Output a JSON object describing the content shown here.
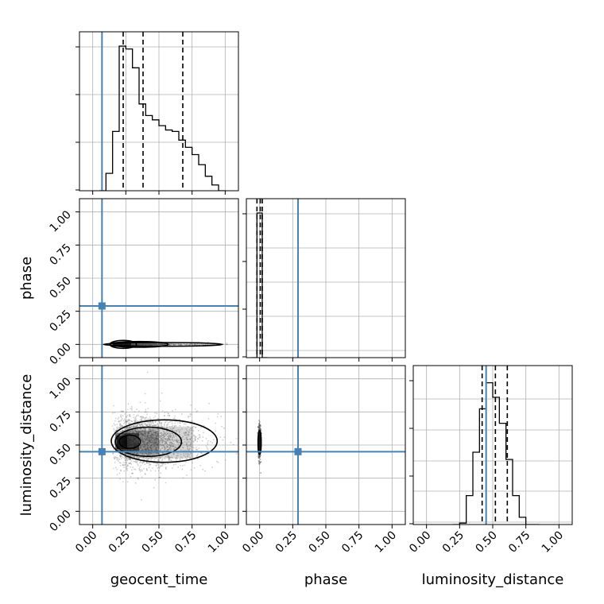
{
  "chart_data": {
    "type": "corner",
    "parameters": [
      "geocent_time",
      "phase",
      "luminosity_distance"
    ],
    "axis_labels": {
      "x": [
        "geocent_time",
        "phase",
        "luminosity_distance"
      ],
      "y": [
        "phase",
        "luminosity_distance"
      ]
    },
    "ticks": [
      0.0,
      0.25,
      0.5,
      0.75,
      1.0
    ],
    "tick_labels": [
      "0.00",
      "0.25",
      "0.50",
      "0.75",
      "1.00"
    ],
    "axis_range": [
      -0.1,
      1.1
    ],
    "grid": true,
    "colors": {
      "truth": "#4682b4",
      "hist": "#000000",
      "quantile": "#000000",
      "grid": "#b0b0b0"
    },
    "truths": {
      "geocent_time": 0.07,
      "phase": 0.29,
      "luminosity_distance": 0.45
    },
    "quantiles": {
      "geocent_time": [
        0.23,
        0.38,
        0.68
      ],
      "phase": [
        -0.02,
        0.005,
        0.02
      ],
      "luminosity_distance": [
        0.42,
        0.52,
        0.61
      ]
    },
    "histograms": {
      "geocent_time": {
        "bin_edges": [
          0.05,
          0.1,
          0.15,
          0.2,
          0.25,
          0.3,
          0.35,
          0.4,
          0.45,
          0.5,
          0.55,
          0.6,
          0.65,
          0.7,
          0.75,
          0.8,
          0.85,
          0.9,
          0.95,
          1.0
        ],
        "heights": [
          0.0,
          0.12,
          0.41,
          1.0,
          0.98,
          0.85,
          0.6,
          0.52,
          0.49,
          0.45,
          0.42,
          0.41,
          0.35,
          0.3,
          0.25,
          0.18,
          0.1,
          0.04,
          0.0
        ]
      },
      "phase": {
        "bin_edges": [
          -0.06,
          -0.02,
          0.02,
          0.06
        ],
        "heights": [
          0.0,
          1.0,
          0.0
        ]
      },
      "luminosity_distance": {
        "bin_edges": [
          0.2,
          0.25,
          0.3,
          0.35,
          0.4,
          0.45,
          0.5,
          0.55,
          0.6,
          0.65,
          0.7,
          0.75,
          0.8,
          0.85
        ],
        "heights": [
          0.0,
          0.01,
          0.2,
          0.5,
          0.8,
          0.98,
          0.88,
          0.7,
          0.45,
          0.2,
          0.05,
          0.0,
          0.0
        ]
      }
    },
    "contours": {
      "geocent_time|phase": [
        {
          "level": "outer",
          "cx": 0.53,
          "cy": 0.0,
          "rx": 0.45,
          "ry": 0.014
        },
        {
          "level": "mid",
          "cx": 0.35,
          "cy": 0.0,
          "rx": 0.22,
          "ry": 0.022
        },
        {
          "level": "inner",
          "cx": 0.23,
          "cy": 0.0,
          "rx": 0.1,
          "ry": 0.03
        }
      ],
      "geocent_time|luminosity_distance": [
        {
          "level": "outer",
          "cx": 0.54,
          "cy": 0.53,
          "rx": 0.4,
          "ry": 0.16
        },
        {
          "level": "mid",
          "cx": 0.42,
          "cy": 0.525,
          "rx": 0.25,
          "ry": 0.11
        },
        {
          "level": "inner",
          "cx": 0.28,
          "cy": 0.525,
          "rx": 0.08,
          "ry": 0.05
        }
      ],
      "phase|luminosity_distance": [
        {
          "level": "outer",
          "cx": 0.0,
          "cy": 0.52,
          "rx": 0.012,
          "ry": 0.09
        }
      ]
    }
  }
}
